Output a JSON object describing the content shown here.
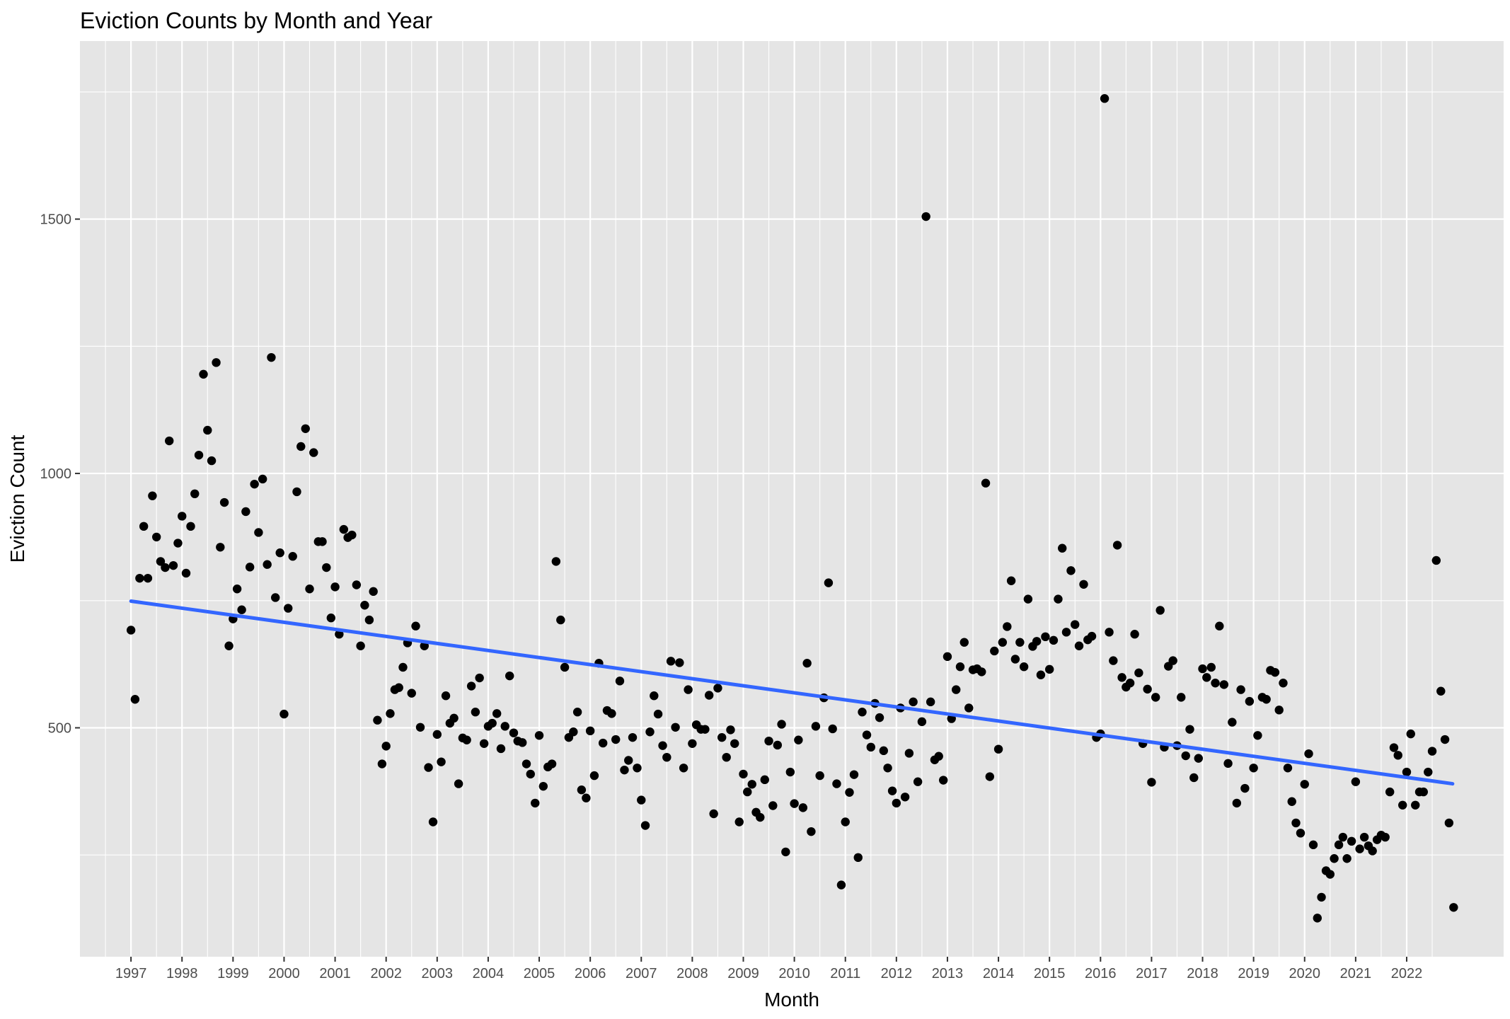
{
  "chart_data": {
    "type": "scatter",
    "title": "Eviction Counts by Month and Year",
    "xlabel": "Month",
    "ylabel": "Eviction Count",
    "x_tick_labels": [
      "1997",
      "1998",
      "1999",
      "2000",
      "2001",
      "2002",
      "2003",
      "2004",
      "2005",
      "2006",
      "2007",
      "2008",
      "2009",
      "2010",
      "2011",
      "2012",
      "2013",
      "2014",
      "2015",
      "2016",
      "2017",
      "2018",
      "2019",
      "2020",
      "2021",
      "2022"
    ],
    "y_ticks": [
      500,
      1000,
      1500
    ],
    "xlim": [
      1996.0,
      2023.9
    ],
    "ylim": [
      50,
      1850
    ],
    "grid": true,
    "trend_line": {
      "color": "#3366FF",
      "start": {
        "x": 1997.0,
        "y": 749
      },
      "end": {
        "x": 2022.9,
        "y": 390
      }
    },
    "colors": {
      "panel": "#E5E5E5",
      "grid": "#FFFFFF",
      "point": "#000000",
      "trend": "#3366FF"
    },
    "points": [
      [
        1997.0,
        692
      ],
      [
        1997.08,
        556
      ],
      [
        1997.17,
        794
      ],
      [
        1997.25,
        896
      ],
      [
        1997.33,
        794
      ],
      [
        1997.42,
        956
      ],
      [
        1997.5,
        875
      ],
      [
        1997.58,
        827
      ],
      [
        1997.67,
        815
      ],
      [
        1997.75,
        1064
      ],
      [
        1997.83,
        819
      ],
      [
        1997.92,
        863
      ],
      [
        1998.0,
        916
      ],
      [
        1998.08,
        804
      ],
      [
        1998.17,
        896
      ],
      [
        1998.25,
        960
      ],
      [
        1998.33,
        1036
      ],
      [
        1998.42,
        1195
      ],
      [
        1998.5,
        1085
      ],
      [
        1998.58,
        1025
      ],
      [
        1998.67,
        1218
      ],
      [
        1998.75,
        855
      ],
      [
        1998.83,
        943
      ],
      [
        1998.92,
        661
      ],
      [
        1999.0,
        714
      ],
      [
        1999.08,
        773
      ],
      [
        1999.17,
        732
      ],
      [
        1999.25,
        925
      ],
      [
        1999.33,
        816
      ],
      [
        1999.42,
        979
      ],
      [
        1999.5,
        884
      ],
      [
        1999.58,
        989
      ],
      [
        1999.67,
        821
      ],
      [
        1999.75,
        1228
      ],
      [
        1999.83,
        756
      ],
      [
        1999.92,
        844
      ],
      [
        2000.0,
        527
      ],
      [
        2000.08,
        735
      ],
      [
        2000.17,
        837
      ],
      [
        2000.25,
        964
      ],
      [
        2000.33,
        1053
      ],
      [
        2000.42,
        1088
      ],
      [
        2000.5,
        773
      ],
      [
        2000.58,
        1041
      ],
      [
        2000.67,
        866
      ],
      [
        2000.75,
        866
      ],
      [
        2000.83,
        815
      ],
      [
        2000.92,
        716
      ],
      [
        2001.0,
        777
      ],
      [
        2001.08,
        684
      ],
      [
        2001.17,
        890
      ],
      [
        2001.25,
        874
      ],
      [
        2001.33,
        879
      ],
      [
        2001.42,
        781
      ],
      [
        2001.5,
        661
      ],
      [
        2001.58,
        741
      ],
      [
        2001.67,
        712
      ],
      [
        2001.75,
        768
      ],
      [
        2001.83,
        515
      ],
      [
        2001.92,
        429
      ],
      [
        2002.0,
        464
      ],
      [
        2002.08,
        528
      ],
      [
        2002.17,
        575
      ],
      [
        2002.25,
        579
      ],
      [
        2002.33,
        619
      ],
      [
        2002.42,
        667
      ],
      [
        2002.5,
        568
      ],
      [
        2002.58,
        700
      ],
      [
        2002.67,
        501
      ],
      [
        2002.75,
        661
      ],
      [
        2002.83,
        422
      ],
      [
        2002.92,
        315
      ],
      [
        2003.0,
        487
      ],
      [
        2003.08,
        433
      ],
      [
        2003.17,
        563
      ],
      [
        2003.25,
        509
      ],
      [
        2003.33,
        519
      ],
      [
        2003.42,
        390
      ],
      [
        2003.5,
        480
      ],
      [
        2003.58,
        476
      ],
      [
        2003.67,
        582
      ],
      [
        2003.75,
        531
      ],
      [
        2003.83,
        598
      ],
      [
        2003.92,
        469
      ],
      [
        2004.0,
        503
      ],
      [
        2004.08,
        509
      ],
      [
        2004.17,
        528
      ],
      [
        2004.25,
        459
      ],
      [
        2004.33,
        503
      ],
      [
        2004.42,
        602
      ],
      [
        2004.5,
        490
      ],
      [
        2004.58,
        474
      ],
      [
        2004.67,
        471
      ],
      [
        2004.75,
        429
      ],
      [
        2004.83,
        409
      ],
      [
        2004.92,
        352
      ],
      [
        2005.0,
        485
      ],
      [
        2005.08,
        385
      ],
      [
        2005.17,
        423
      ],
      [
        2005.25,
        429
      ],
      [
        2005.33,
        827
      ],
      [
        2005.42,
        712
      ],
      [
        2005.5,
        619
      ],
      [
        2005.58,
        481
      ],
      [
        2005.67,
        492
      ],
      [
        2005.75,
        531
      ],
      [
        2005.83,
        378
      ],
      [
        2005.92,
        362
      ],
      [
        2006.0,
        494
      ],
      [
        2006.08,
        406
      ],
      [
        2006.17,
        627
      ],
      [
        2006.25,
        470
      ],
      [
        2006.33,
        534
      ],
      [
        2006.42,
        528
      ],
      [
        2006.5,
        477
      ],
      [
        2006.58,
        592
      ],
      [
        2006.67,
        417
      ],
      [
        2006.75,
        436
      ],
      [
        2006.83,
        481
      ],
      [
        2006.92,
        421
      ],
      [
        2007.0,
        358
      ],
      [
        2007.08,
        308
      ],
      [
        2007.17,
        492
      ],
      [
        2007.25,
        563
      ],
      [
        2007.33,
        527
      ],
      [
        2007.42,
        465
      ],
      [
        2007.5,
        442
      ],
      [
        2007.58,
        631
      ],
      [
        2007.67,
        501
      ],
      [
        2007.75,
        628
      ],
      [
        2007.83,
        421
      ],
      [
        2007.92,
        575
      ],
      [
        2008.0,
        469
      ],
      [
        2008.08,
        506
      ],
      [
        2008.17,
        497
      ],
      [
        2008.25,
        497
      ],
      [
        2008.33,
        564
      ],
      [
        2008.42,
        331
      ],
      [
        2008.5,
        578
      ],
      [
        2008.58,
        481
      ],
      [
        2008.67,
        442
      ],
      [
        2008.75,
        496
      ],
      [
        2008.83,
        469
      ],
      [
        2008.92,
        315
      ],
      [
        2009.0,
        409
      ],
      [
        2009.08,
        374
      ],
      [
        2009.17,
        389
      ],
      [
        2009.25,
        334
      ],
      [
        2009.33,
        324
      ],
      [
        2009.42,
        398
      ],
      [
        2009.5,
        474
      ],
      [
        2009.58,
        347
      ],
      [
        2009.67,
        466
      ],
      [
        2009.75,
        507
      ],
      [
        2009.83,
        256
      ],
      [
        2009.92,
        413
      ],
      [
        2010.0,
        351
      ],
      [
        2010.08,
        476
      ],
      [
        2010.17,
        343
      ],
      [
        2010.25,
        627
      ],
      [
        2010.33,
        296
      ],
      [
        2010.42,
        503
      ],
      [
        2010.5,
        406
      ],
      [
        2010.58,
        559
      ],
      [
        2010.67,
        785
      ],
      [
        2010.75,
        498
      ],
      [
        2010.83,
        390
      ],
      [
        2010.92,
        191
      ],
      [
        2011.0,
        315
      ],
      [
        2011.08,
        373
      ],
      [
        2011.17,
        408
      ],
      [
        2011.25,
        245
      ],
      [
        2011.33,
        531
      ],
      [
        2011.42,
        486
      ],
      [
        2011.5,
        462
      ],
      [
        2011.58,
        548
      ],
      [
        2011.67,
        520
      ],
      [
        2011.75,
        455
      ],
      [
        2011.83,
        421
      ],
      [
        2011.92,
        376
      ],
      [
        2012.0,
        352
      ],
      [
        2012.08,
        539
      ],
      [
        2012.17,
        364
      ],
      [
        2012.25,
        450
      ],
      [
        2012.33,
        551
      ],
      [
        2012.42,
        394
      ],
      [
        2012.5,
        512
      ],
      [
        2012.58,
        1505
      ],
      [
        2012.67,
        551
      ],
      [
        2012.75,
        437
      ],
      [
        2012.83,
        444
      ],
      [
        2012.92,
        397
      ],
      [
        2013.0,
        640
      ],
      [
        2013.08,
        518
      ],
      [
        2013.17,
        575
      ],
      [
        2013.25,
        620
      ],
      [
        2013.33,
        668
      ],
      [
        2013.42,
        539
      ],
      [
        2013.5,
        614
      ],
      [
        2013.58,
        616
      ],
      [
        2013.67,
        610
      ],
      [
        2013.75,
        981
      ],
      [
        2013.83,
        404
      ],
      [
        2013.92,
        651
      ],
      [
        2014.0,
        458
      ],
      [
        2014.08,
        668
      ],
      [
        2014.17,
        699
      ],
      [
        2014.25,
        789
      ],
      [
        2014.33,
        635
      ],
      [
        2014.42,
        668
      ],
      [
        2014.5,
        620
      ],
      [
        2014.58,
        753
      ],
      [
        2014.67,
        660
      ],
      [
        2014.75,
        670
      ],
      [
        2014.83,
        604
      ],
      [
        2014.92,
        679
      ],
      [
        2015.0,
        615
      ],
      [
        2015.08,
        672
      ],
      [
        2015.17,
        753
      ],
      [
        2015.25,
        853
      ],
      [
        2015.33,
        688
      ],
      [
        2015.42,
        809
      ],
      [
        2015.5,
        703
      ],
      [
        2015.58,
        661
      ],
      [
        2015.67,
        782
      ],
      [
        2015.75,
        673
      ],
      [
        2015.83,
        680
      ],
      [
        2015.92,
        481
      ],
      [
        2016.0,
        488
      ],
      [
        2016.08,
        1737
      ],
      [
        2016.17,
        688
      ],
      [
        2016.25,
        632
      ],
      [
        2016.33,
        859
      ],
      [
        2016.42,
        599
      ],
      [
        2016.5,
        580
      ],
      [
        2016.58,
        588
      ],
      [
        2016.67,
        684
      ],
      [
        2016.75,
        608
      ],
      [
        2016.83,
        469
      ],
      [
        2016.92,
        576
      ],
      [
        2017.0,
        393
      ],
      [
        2017.08,
        560
      ],
      [
        2017.17,
        731
      ],
      [
        2017.25,
        462
      ],
      [
        2017.33,
        621
      ],
      [
        2017.42,
        632
      ],
      [
        2017.5,
        465
      ],
      [
        2017.58,
        560
      ],
      [
        2017.67,
        445
      ],
      [
        2017.75,
        497
      ],
      [
        2017.83,
        402
      ],
      [
        2017.92,
        440
      ],
      [
        2018.0,
        616
      ],
      [
        2018.08,
        599
      ],
      [
        2018.17,
        619
      ],
      [
        2018.25,
        588
      ],
      [
        2018.33,
        700
      ],
      [
        2018.42,
        585
      ],
      [
        2018.5,
        430
      ],
      [
        2018.58,
        511
      ],
      [
        2018.67,
        352
      ],
      [
        2018.75,
        575
      ],
      [
        2018.83,
        381
      ],
      [
        2018.92,
        552
      ],
      [
        2019.0,
        421
      ],
      [
        2019.08,
        485
      ],
      [
        2019.17,
        560
      ],
      [
        2019.25,
        556
      ],
      [
        2019.33,
        613
      ],
      [
        2019.42,
        609
      ],
      [
        2019.5,
        535
      ],
      [
        2019.58,
        588
      ],
      [
        2019.67,
        421
      ],
      [
        2019.75,
        355
      ],
      [
        2019.83,
        313
      ],
      [
        2019.92,
        293
      ],
      [
        2020.0,
        389
      ],
      [
        2020.08,
        449
      ],
      [
        2020.17,
        270
      ],
      [
        2020.25,
        126
      ],
      [
        2020.33,
        167
      ],
      [
        2020.42,
        219
      ],
      [
        2020.5,
        212
      ],
      [
        2020.58,
        243
      ],
      [
        2020.67,
        270
      ],
      [
        2020.75,
        285
      ],
      [
        2020.83,
        243
      ],
      [
        2020.92,
        277
      ],
      [
        2021.0,
        394
      ],
      [
        2021.08,
        262
      ],
      [
        2021.17,
        285
      ],
      [
        2021.25,
        268
      ],
      [
        2021.33,
        258
      ],
      [
        2021.42,
        280
      ],
      [
        2021.5,
        289
      ],
      [
        2021.58,
        285
      ],
      [
        2021.67,
        374
      ],
      [
        2021.75,
        461
      ],
      [
        2021.83,
        446
      ],
      [
        2021.92,
        348
      ],
      [
        2022.0,
        413
      ],
      [
        2022.08,
        488
      ],
      [
        2022.17,
        348
      ],
      [
        2022.25,
        374
      ],
      [
        2022.33,
        374
      ],
      [
        2022.42,
        413
      ],
      [
        2022.5,
        454
      ],
      [
        2022.58,
        829
      ],
      [
        2022.67,
        572
      ],
      [
        2022.75,
        477
      ],
      [
        2022.83,
        313
      ],
      [
        2022.92,
        147
      ]
    ]
  }
}
